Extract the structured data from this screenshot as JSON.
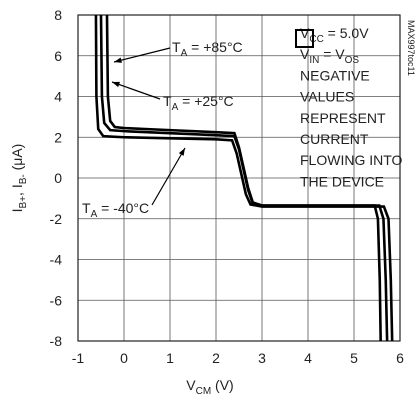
{
  "chart_data": {
    "type": "line",
    "xlabel": [
      "V",
      "CM",
      " (V)"
    ],
    "ylabel": [
      "I",
      "B+",
      ", I",
      "B-",
      " (μA)"
    ],
    "xlim": [
      -1,
      6
    ],
    "xticks": [
      -1,
      0,
      1,
      2,
      3,
      4,
      5,
      6
    ],
    "ylim": [
      -8,
      8
    ],
    "yticks": [
      -8,
      -6,
      -4,
      -2,
      0,
      2,
      4,
      6,
      8
    ],
    "grid": true,
    "series": [
      {
        "label": [
          "T",
          "A",
          " = +85°C"
        ],
        "color": "#000",
        "x": [
          -0.37,
          -0.35,
          -0.3,
          -0.2,
          0,
          1,
          2,
          2.4,
          2.5,
          2.7,
          2.8,
          3,
          4,
          5,
          5.45,
          5.52,
          5.56,
          5.58
        ],
        "values": [
          8,
          4,
          2.8,
          2.5,
          2.45,
          2.35,
          2.25,
          2.2,
          1.5,
          -0.5,
          -1.2,
          -1.35,
          -1.35,
          -1.35,
          -1.35,
          -2,
          -5,
          -8
        ]
      },
      {
        "label": [
          "T",
          "A",
          " = +25°C"
        ],
        "color": "#000",
        "x": [
          -0.5,
          -0.48,
          -0.43,
          -0.3,
          0,
          1,
          2,
          2.4,
          2.5,
          2.7,
          2.8,
          3,
          4,
          5,
          5.55,
          5.64,
          5.69,
          5.72
        ],
        "values": [
          8,
          4,
          2.7,
          2.35,
          2.3,
          2.2,
          2.1,
          2.05,
          1.4,
          -0.6,
          -1.25,
          -1.35,
          -1.35,
          -1.35,
          -1.35,
          -2,
          -5,
          -8
        ]
      },
      {
        "label": [
          "T",
          "A",
          " = -40°C"
        ],
        "color": "#000",
        "x": [
          -0.61,
          -0.6,
          -0.56,
          -0.45,
          0,
          1,
          2,
          2.35,
          2.45,
          2.65,
          2.75,
          3,
          4,
          5,
          5.65,
          5.75,
          5.8,
          5.83
        ],
        "values": [
          8,
          4,
          2.4,
          2.05,
          2.0,
          1.95,
          1.9,
          1.85,
          1.2,
          -0.8,
          -1.3,
          -1.4,
          -1.4,
          -1.4,
          -1.4,
          -2,
          -5,
          -8
        ]
      }
    ],
    "note": [
      [
        "V",
        "CC",
        " = 5.0V"
      ],
      [
        "V",
        "IN",
        " = V",
        "OS"
      ],
      [
        "NEGATIVE"
      ],
      [
        "VALUES"
      ],
      [
        "REPRESENT"
      ],
      [
        "CURRENT"
      ],
      [
        "FLOWING INTO"
      ],
      [
        "THE DEVICE"
      ]
    ],
    "side_label": "MAX997toc11"
  }
}
